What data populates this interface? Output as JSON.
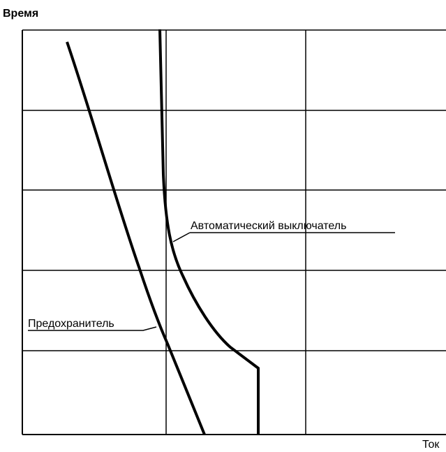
{
  "y_axis_label": "Время",
  "x_axis_label": "Ток",
  "curves": [
    {
      "label": "Автоматический выключатель"
    },
    {
      "label": "Предохранитель"
    }
  ]
}
